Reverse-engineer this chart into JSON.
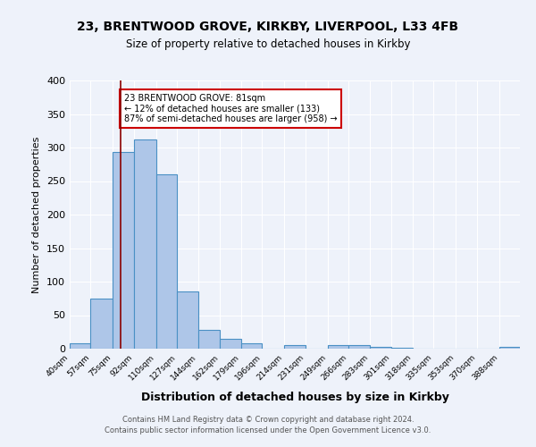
{
  "title1": "23, BRENTWOOD GROVE, KIRKBY, LIVERPOOL, L33 4FB",
  "title2": "Size of property relative to detached houses in Kirkby",
  "xlabel": "Distribution of detached houses by size in Kirkby",
  "ylabel": "Number of detached properties",
  "footer1": "Contains HM Land Registry data © Crown copyright and database right 2024.",
  "footer2": "Contains public sector information licensed under the Open Government Licence v3.0.",
  "bin_labels": [
    "40sqm",
    "57sqm",
    "75sqm",
    "92sqm",
    "110sqm",
    "127sqm",
    "144sqm",
    "162sqm",
    "179sqm",
    "196sqm",
    "214sqm",
    "231sqm",
    "249sqm",
    "266sqm",
    "283sqm",
    "301sqm",
    "318sqm",
    "335sqm",
    "353sqm",
    "370sqm",
    "388sqm"
  ],
  "bar_values": [
    8,
    75,
    293,
    312,
    260,
    85,
    28,
    15,
    8,
    0,
    5,
    0,
    6,
    5,
    3,
    2,
    0,
    0,
    0,
    0,
    3
  ],
  "bar_color": "#aec6e8",
  "bar_edge_color": "#4a90c4",
  "vline_x": 81,
  "vline_color": "#8b0000",
  "annotation_text": "23 BRENTWOOD GROVE: 81sqm\n← 12% of detached houses are smaller (133)\n87% of semi-detached houses are larger (958) →",
  "annotation_box_color": "white",
  "annotation_box_edge": "#cc0000",
  "ylim": [
    0,
    400
  ],
  "yticks": [
    0,
    50,
    100,
    150,
    200,
    250,
    300,
    350,
    400
  ],
  "bin_edges_sqm": [
    40,
    57,
    75,
    92,
    110,
    127,
    144,
    162,
    179,
    196,
    214,
    231,
    249,
    266,
    283,
    301,
    318,
    335,
    353,
    370,
    388,
    405
  ],
  "background_color": "#eef2fa"
}
